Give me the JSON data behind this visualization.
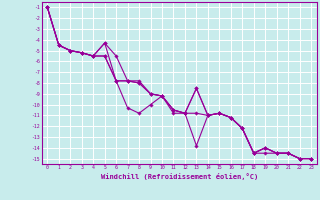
{
  "title": "",
  "xlabel": "Windchill (Refroidissement éolien,°C)",
  "ylabel": "",
  "bg_color": "#c8ecec",
  "grid_color": "#ffffff",
  "line_color": "#990099",
  "xlim": [
    -0.5,
    23.5
  ],
  "ylim": [
    -15.5,
    -0.5
  ],
  "yticks": [
    -1,
    -2,
    -3,
    -4,
    -5,
    -6,
    -7,
    -8,
    -9,
    -10,
    -11,
    -12,
    -13,
    -14,
    -15
  ],
  "xticks": [
    0,
    1,
    2,
    3,
    4,
    5,
    6,
    7,
    8,
    9,
    10,
    11,
    12,
    13,
    14,
    15,
    16,
    17,
    18,
    19,
    20,
    21,
    22,
    23
  ],
  "series": [
    [
      -1.0,
      -4.5,
      -5.0,
      -5.2,
      -5.5,
      -4.3,
      -5.5,
      -7.8,
      -7.8,
      -9.0,
      -9.2,
      -10.5,
      -10.8,
      -8.5,
      -11.0,
      -10.8,
      -11.2,
      -12.2,
      -14.5,
      -14.0,
      -14.5,
      -14.5,
      -15.0,
      -15.0
    ],
    [
      -1.0,
      -4.5,
      -5.0,
      -5.2,
      -5.5,
      -4.3,
      -7.8,
      -7.8,
      -8.0,
      -9.0,
      -9.2,
      -10.5,
      -10.8,
      -13.8,
      -11.0,
      -10.8,
      -11.2,
      -12.2,
      -14.5,
      -14.0,
      -14.5,
      -14.5,
      -15.0,
      -15.0
    ],
    [
      -1.0,
      -4.5,
      -5.0,
      -5.2,
      -5.5,
      -5.5,
      -7.8,
      -7.8,
      -8.0,
      -9.0,
      -9.2,
      -10.5,
      -10.8,
      -10.8,
      -11.0,
      -10.8,
      -11.2,
      -12.2,
      -14.5,
      -14.0,
      -14.5,
      -14.5,
      -15.0,
      -15.0
    ],
    [
      -1.0,
      -4.5,
      -5.0,
      -5.2,
      -5.5,
      -5.5,
      -7.8,
      -10.3,
      -10.8,
      -10.0,
      -9.2,
      -10.8,
      -10.8,
      -8.5,
      -11.0,
      -10.8,
      -11.2,
      -12.2,
      -14.5,
      -14.5,
      -14.5,
      -14.5,
      -15.0,
      -15.0
    ]
  ]
}
